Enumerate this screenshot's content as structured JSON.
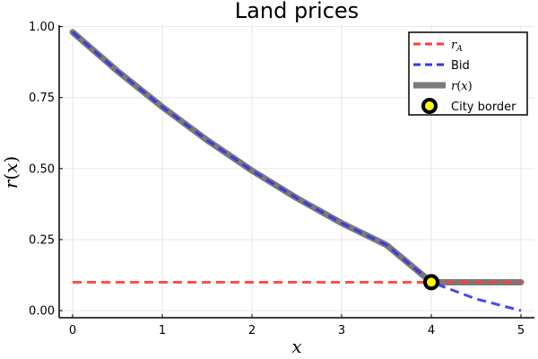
{
  "chart_data": {
    "type": "line",
    "title": "Land prices",
    "xlabel": "x",
    "ylabel_parts": {
      "base": "r",
      "arg": "x"
    },
    "xlim": [
      -0.15,
      5.15
    ],
    "ylim": [
      -0.025,
      1.005
    ],
    "xticks": [
      0,
      1,
      2,
      3,
      4,
      5
    ],
    "xtick_labels": [
      "0",
      "1",
      "2",
      "3",
      "4",
      "5"
    ],
    "yticks": [
      0,
      0.25,
      0.5,
      0.75,
      1.0
    ],
    "ytick_labels": [
      "0.00",
      "0.25",
      "0.50",
      "0.75",
      "1.00"
    ],
    "grid": true,
    "legend_position": "top-right",
    "series": [
      {
        "key": "rA",
        "name": "r_A",
        "legend_base": "r",
        "legend_sub": "A",
        "style": "dashed",
        "color": "#ff3b3b",
        "x": [
          0,
          5
        ],
        "y": [
          0.1,
          0.1
        ]
      },
      {
        "key": "bid",
        "name": "Bid",
        "legend": "Bid",
        "style": "dashed",
        "color": "#3333ee",
        "x": [
          0,
          0.5,
          1,
          1.5,
          2,
          2.5,
          3,
          3.5,
          4,
          4.5,
          5
        ],
        "y": [
          0.98,
          0.843,
          0.717,
          0.6,
          0.493,
          0.396,
          0.308,
          0.231,
          0.1,
          0.041,
          0.0
        ]
      },
      {
        "key": "r",
        "name": "r(x)",
        "legend_base": "r",
        "legend_arg": "x",
        "style": "solid-thick",
        "color": "#7a7a7a",
        "x": [
          0,
          0.5,
          1,
          1.5,
          2,
          2.5,
          3,
          3.5,
          4,
          4.5,
          5
        ],
        "y": [
          0.98,
          0.843,
          0.717,
          0.6,
          0.493,
          0.396,
          0.308,
          0.231,
          0.1,
          0.1,
          0.1
        ]
      }
    ],
    "points": [
      {
        "name": "City border",
        "legend": "City border",
        "x": 4,
        "y": 0.1,
        "color": "#ffff00",
        "edge": "#000000"
      }
    ]
  }
}
